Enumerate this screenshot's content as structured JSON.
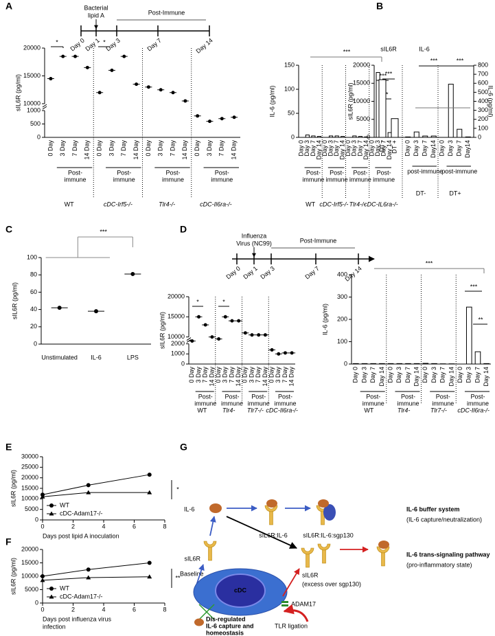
{
  "A": {
    "letter": "A",
    "timeline": {
      "event": [
        "Bacterial",
        "lipid A"
      ],
      "period": "Post-Immune",
      "days": [
        "Day 0",
        "Day 1",
        "Day 3",
        "Day 7",
        "Day 14"
      ]
    },
    "left": {
      "kind": "dot",
      "ylabel": "sIL6R (pg/ml)",
      "segments": [
        [
          0,
          1000
        ],
        [
          10000,
          20000
        ]
      ],
      "yticks": [
        0,
        500,
        1000,
        10000,
        15000,
        20000
      ],
      "post_label": [
        "Post-",
        "immune"
      ],
      "groups": [
        {
          "name": "WT",
          "days": [
            "0 Day",
            "3 Day",
            "7 Day",
            "14 Day"
          ],
          "values": [
            14500,
            18500,
            18500,
            16500
          ]
        },
        {
          "name": "cDC-Irf5-/-",
          "days": [
            "0 Day",
            "3 Day",
            "7 Day",
            "14 Day"
          ],
          "values": [
            12000,
            16000,
            18500,
            13500
          ]
        },
        {
          "name": "Tlr4-/-",
          "days": [
            "0 Day",
            "3 Day",
            "7 Day",
            "14 Day"
          ],
          "values": [
            13000,
            12500,
            12000,
            10500
          ]
        },
        {
          "name": "cDC-Il6ra-/-",
          "days": [
            "0 Day",
            "3 Day",
            "7 Day",
            "14 Day"
          ],
          "values": [
            800,
            600,
            700,
            750
          ]
        }
      ],
      "significance": [
        "*",
        "*"
      ]
    },
    "right": {
      "kind": "bar",
      "ylabel": "IL-6 (pg/ml)",
      "ylim": [
        0,
        150
      ],
      "yticks": [
        0,
        50,
        100,
        150
      ],
      "post_label": [
        "Post-",
        "immune"
      ],
      "groups": [
        {
          "name": "WT",
          "days": [
            "Day 0",
            "Day 3",
            "Day 7",
            "Day 14"
          ],
          "values": [
            0,
            5,
            3,
            2
          ]
        },
        {
          "name": "cDC-Irf5-/-",
          "days": [
            "Day 0",
            "Day 3",
            "Day 7",
            "Day 14"
          ],
          "values": [
            0,
            3,
            3,
            2
          ]
        },
        {
          "name": "Tlr4-/-",
          "days": [
            "Day 0",
            "Day 3",
            "Day 7",
            "Day 14"
          ],
          "values": [
            0,
            3,
            2,
            1
          ]
        },
        {
          "name": "cDC-IL6ra-/-",
          "days": [
            "Day 0",
            "Day 3",
            "Day 7",
            "Day 14"
          ],
          "values": [
            0,
            135,
            55,
            10
          ]
        }
      ],
      "significance": [
        "***",
        "***",
        "**"
      ]
    }
  },
  "B": {
    "letter": "B",
    "left_heading": "sIL6R",
    "right_heading": "IL-6",
    "ylabel": "sIL6R (pg/ml)",
    "y2label": "IL-6 (pg/ml)",
    "ylim": [
      0,
      20000
    ],
    "yticks": [
      0,
      5000,
      10000,
      15000,
      20000
    ],
    "y2lim": [
      0,
      800
    ],
    "y2ticks": [
      0,
      100,
      200,
      300,
      400,
      500,
      600,
      700,
      800
    ],
    "dt": {
      "categories": [
        "DT -",
        "DT +"
      ],
      "values": [
        16000,
        5200
      ]
    },
    "post_label": "post-immune",
    "groups": [
      {
        "name": "DT-",
        "days": [
          "Day 0",
          "Day 3",
          "Day 7",
          "Day14"
        ],
        "values": [
          5,
          60,
          15,
          15
        ]
      },
      {
        "name": "DT+",
        "days": [
          "Day 0",
          "Day 3",
          "Day 7",
          "Day14"
        ],
        "values": [
          0,
          590,
          90,
          5
        ]
      }
    ],
    "significance": [
      "***",
      "***",
      "***"
    ]
  },
  "C": {
    "letter": "C",
    "ylabel": "sIL6R (pg/ml)",
    "ylim": [
      0,
      100
    ],
    "yticks": [
      0,
      20,
      40,
      60,
      80,
      100
    ],
    "categories": [
      "Unstimulated",
      "IL-6",
      "LPS"
    ],
    "values": [
      42,
      38,
      81
    ],
    "significance": "***"
  },
  "D": {
    "letter": "D",
    "timeline": {
      "event": [
        "Influenza",
        "Virus (NC99)"
      ],
      "period": "Post-Immune",
      "days": [
        "Day 0",
        "Day 1",
        "Day 3",
        "Day 7",
        "Day 14"
      ]
    },
    "left": {
      "kind": "dot",
      "ylabel": "sIL6R (pg/ml)",
      "segments": [
        [
          0,
          2000
        ],
        [
          10000,
          20000
        ]
      ],
      "yticks": [
        0,
        1000,
        2000,
        10000,
        15000,
        20000
      ],
      "post_label": [
        "Post-",
        "immune"
      ],
      "groups": [
        {
          "name": "WT",
          "days": [
            "0 Day",
            "3 Day",
            "7 Day",
            "14 Day"
          ],
          "values": [
            9000,
            15000,
            13000,
            10000
          ]
        },
        {
          "name": "Tlr4-",
          "days": [
            "0 Day",
            "3 Day",
            "7 Day",
            "14 Day"
          ],
          "values": [
            9500,
            15000,
            14000,
            14000
          ]
        },
        {
          "name": "Tlr7-/-",
          "days": [
            "0 Day",
            "3 Day",
            "7 Day",
            "14 Day"
          ],
          "values": [
            11000,
            10500,
            10500,
            10500
          ]
        },
        {
          "name": "cDC-Il6ra-/-",
          "days": [
            "0 Day",
            "3 Day",
            "7 Day",
            "14 Day"
          ],
          "values": [
            1400,
            1000,
            1100,
            1100
          ]
        }
      ],
      "significance": [
        "*",
        "*"
      ]
    },
    "right": {
      "kind": "bar",
      "ylabel": "IL-6 (pg/ml)",
      "ylim": [
        0,
        400
      ],
      "yticks": [
        0,
        100,
        200,
        300,
        400
      ],
      "post_label": [
        "Post-",
        "immune"
      ],
      "groups": [
        {
          "name": "WT",
          "days": [
            "Day 0",
            "Day 3",
            "Day 7",
            "Day 14"
          ],
          "values": [
            2,
            2,
            2,
            2
          ]
        },
        {
          "name": "Tlr4-",
          "days": [
            "Day 0",
            "Day 3",
            "Day 7",
            "Day 14"
          ],
          "values": [
            2,
            2,
            2,
            2
          ]
        },
        {
          "name": "Tlr7-/-",
          "days": [
            "Day 0",
            "Day 3",
            "Day 7",
            "Day 14"
          ],
          "values": [
            3,
            2,
            1,
            1
          ]
        },
        {
          "name": "cDC-Il6ra-/-",
          "days": [
            "Day 0",
            "Day 3",
            "Day 7",
            "Day 14"
          ],
          "values": [
            0,
            255,
            55,
            2
          ]
        }
      ],
      "significance": [
        "***",
        "***",
        "**"
      ]
    }
  },
  "E": {
    "letter": "E",
    "ylabel": "sIL6R (pg/ml)",
    "xlabel": [
      "Days post lipid A inoculation"
    ],
    "xlim": [
      0,
      8
    ],
    "xticks": [
      0,
      2,
      4,
      6,
      8
    ],
    "ylim": [
      0,
      30000
    ],
    "yticks": [
      0,
      5000,
      10000,
      15000,
      20000,
      25000,
      30000
    ],
    "x": [
      0,
      3,
      7
    ],
    "series": [
      {
        "name": "WT",
        "values": [
          12000,
          16500,
          21500
        ]
      },
      {
        "name": "cDC-Adam17-/-",
        "values": [
          11000,
          13000,
          13000
        ]
      }
    ],
    "significance": "*"
  },
  "F": {
    "letter": "F",
    "ylabel": "sIL6R (pg/ml)",
    "xlabel": [
      "Days post influenza virus",
      "infection"
    ],
    "xlim": [
      0,
      8
    ],
    "xticks": [
      0,
      2,
      4,
      6,
      8
    ],
    "ylim": [
      0,
      20000
    ],
    "yticks": [
      0,
      5000,
      10000,
      15000,
      20000
    ],
    "x": [
      0,
      3,
      7
    ],
    "series": [
      {
        "name": "WT",
        "values": [
          10000,
          12500,
          15000
        ]
      },
      {
        "name": "cDC-Adam17-/-",
        "values": [
          8500,
          9500,
          9800
        ]
      }
    ],
    "significance": "**"
  },
  "G": {
    "letter": "G",
    "labels": {
      "il6": "IL-6",
      "complex1": "sIL6R:IL-6",
      "complex2": "sIL6R:IL-6:sgp130",
      "buffer_title": "IL-6 buffer system",
      "buffer_sub": "(IL-6 capture/neutralization)",
      "trans_title": "IL-6 trans-signaling pathway",
      "trans_sub": "(pro-inflammatory state)",
      "sil6r_left": "sIL6R",
      "baseline": "Baseline",
      "sil6r_excess": "sIL6R",
      "excess": "(excess over sgp130)",
      "adam17": "ADAM17",
      "tlr": "TLR ligation",
      "cdc": "cDC",
      "dysreg": [
        "Dis-regulated",
        "IL-6 capture and",
        "homeostasis"
      ]
    }
  }
}
